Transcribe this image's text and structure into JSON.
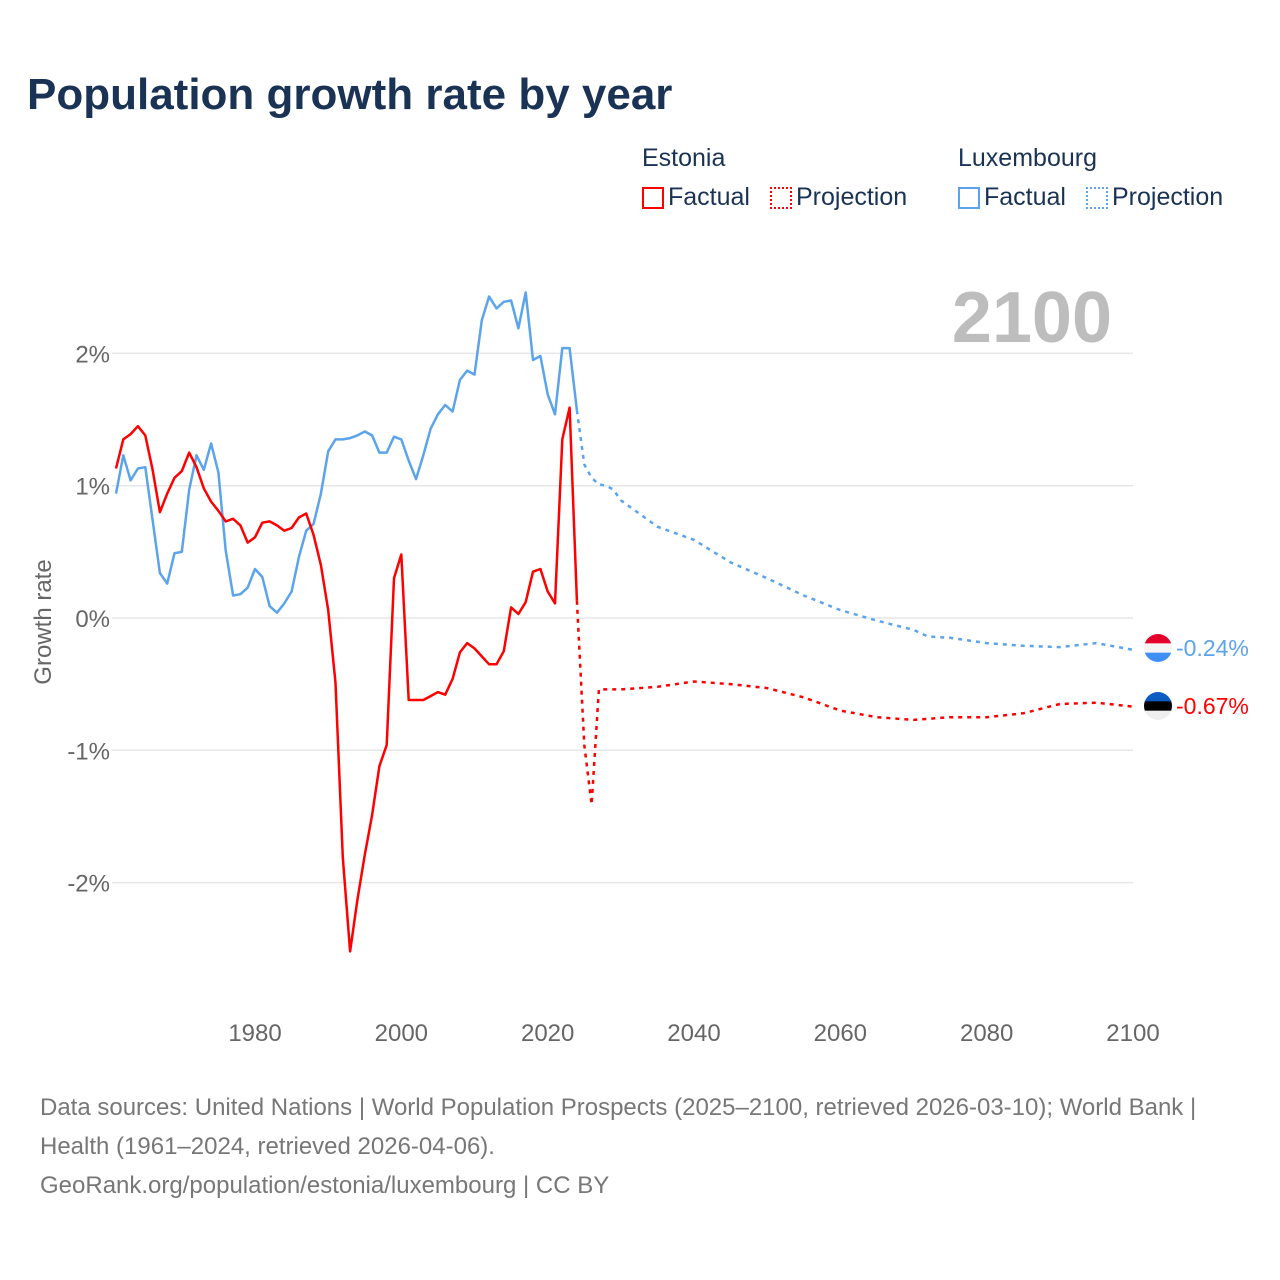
{
  "title": "Population growth rate by year",
  "legend": [
    {
      "country": "Estonia",
      "factual": "Factual",
      "projection": "Projection",
      "color": "#ff0000"
    },
    {
      "country": "Luxembourg",
      "factual": "Factual",
      "projection": "Projection",
      "color": "#5ba4ec"
    }
  ],
  "year_label": "2100",
  "footer": {
    "sources": "Data sources: United Nations | World Population Prospects (2025–2100, retrieved 2026-03-10); World Bank | Health (1961–2024, retrieved 2026-04-06).",
    "link": "GeoRank.org/population/estonia/luxembourg | CC BY"
  },
  "chart_data": {
    "type": "line",
    "title": "Population growth rate by year",
    "xlabel": "",
    "ylabel": "Growth rate",
    "xlim": [
      1961,
      2100
    ],
    "ylim": [
      -2.8,
      2.6
    ],
    "x_ticks": [
      1980,
      2000,
      2020,
      2040,
      2060,
      2080,
      2100
    ],
    "x_tick_labels": [
      "1980",
      "2000",
      "2020",
      "2040",
      "2060",
      "2080",
      "2100"
    ],
    "y_ticks": [
      2,
      1,
      0,
      -1,
      -2
    ],
    "y_tick_labels": [
      "2%",
      "1%",
      "0%",
      "-1%",
      "-2%"
    ],
    "grid": true,
    "series": [
      {
        "name": "Estonia",
        "color": "#ff0000",
        "end_label": "-0.67%",
        "factual": {
          "x": [
            1961,
            1962,
            1963,
            1964,
            1965,
            1966,
            1967,
            1968,
            1969,
            1970,
            1971,
            1972,
            1973,
            1974,
            1975,
            1976,
            1977,
            1978,
            1979,
            1980,
            1981,
            1982,
            1983,
            1984,
            1985,
            1986,
            1987,
            1988,
            1989,
            1990,
            1991,
            1992,
            1993,
            1994,
            1995,
            1996,
            1997,
            1998,
            1999,
            2000,
            2001,
            2002,
            2003,
            2004,
            2005,
            2006,
            2007,
            2008,
            2009,
            2010,
            2011,
            2012,
            2013,
            2014,
            2015,
            2016,
            2017,
            2018,
            2019,
            2020,
            2021,
            2022,
            2023,
            2024
          ],
          "y": [
            1.13,
            1.35,
            1.39,
            1.45,
            1.38,
            1.12,
            0.8,
            0.94,
            1.06,
            1.11,
            1.25,
            1.14,
            0.98,
            0.88,
            0.81,
            0.73,
            0.75,
            0.7,
            0.57,
            0.61,
            0.72,
            0.73,
            0.7,
            0.66,
            0.68,
            0.76,
            0.79,
            0.63,
            0.4,
            0.06,
            -0.49,
            -1.81,
            -2.52,
            -2.13,
            -1.79,
            -1.49,
            -1.12,
            -0.96,
            0.3,
            0.48,
            -0.62,
            -0.62,
            -0.62,
            -0.59,
            -0.56,
            -0.58,
            -0.46,
            -0.26,
            -0.19,
            -0.23,
            -0.29,
            -0.35,
            -0.35,
            -0.25,
            0.08,
            0.03,
            0.12,
            0.35,
            0.37,
            0.2,
            0.11,
            1.35,
            1.59,
            0.13
          ]
        },
        "projection": {
          "x": [
            2024,
            2025,
            2026,
            2027,
            2030,
            2035,
            2040,
            2045,
            2050,
            2055,
            2060,
            2065,
            2070,
            2075,
            2080,
            2085,
            2090,
            2095,
            2100
          ],
          "y": [
            0.13,
            -0.96,
            -1.41,
            -0.54,
            -0.54,
            -0.52,
            -0.48,
            -0.5,
            -0.53,
            -0.6,
            -0.7,
            -0.75,
            -0.77,
            -0.75,
            -0.75,
            -0.72,
            -0.65,
            -0.64,
            -0.67
          ]
        }
      },
      {
        "name": "Luxembourg",
        "color": "#5ba4ec",
        "end_label": "-0.24%",
        "factual": {
          "x": [
            1961,
            1962,
            1963,
            1964,
            1965,
            1966,
            1967,
            1968,
            1969,
            1970,
            1971,
            1972,
            1973,
            1974,
            1975,
            1976,
            1977,
            1978,
            1979,
            1980,
            1981,
            1982,
            1983,
            1984,
            1985,
            1986,
            1987,
            1988,
            1989,
            1990,
            1991,
            1992,
            1993,
            1994,
            1995,
            1996,
            1997,
            1998,
            1999,
            2000,
            2001,
            2002,
            2003,
            2004,
            2005,
            2006,
            2007,
            2008,
            2009,
            2010,
            2011,
            2012,
            2013,
            2014,
            2015,
            2016,
            2017,
            2018,
            2019,
            2020,
            2021,
            2022,
            2023,
            2024
          ],
          "y": [
            0.94,
            1.23,
            1.04,
            1.13,
            1.14,
            0.74,
            0.34,
            0.26,
            0.49,
            0.5,
            0.97,
            1.23,
            1.12,
            1.32,
            1.1,
            0.51,
            0.17,
            0.18,
            0.23,
            0.37,
            0.31,
            0.09,
            0.04,
            0.11,
            0.2,
            0.46,
            0.66,
            0.71,
            0.94,
            1.26,
            1.35,
            1.35,
            1.36,
            1.38,
            1.41,
            1.38,
            1.25,
            1.25,
            1.37,
            1.35,
            1.19,
            1.05,
            1.23,
            1.43,
            1.54,
            1.61,
            1.56,
            1.8,
            1.87,
            1.84,
            2.25,
            2.43,
            2.34,
            2.39,
            2.4,
            2.19,
            2.46,
            1.95,
            1.98,
            1.69,
            1.54,
            2.04,
            2.04,
            1.57
          ]
        },
        "projection": {
          "x": [
            2024,
            2025,
            2026,
            2027,
            2028,
            2029,
            2030,
            2035,
            2040,
            2045,
            2050,
            2055,
            2060,
            2065,
            2070,
            2072,
            2075,
            2080,
            2085,
            2090,
            2095,
            2100
          ],
          "y": [
            1.57,
            1.16,
            1.06,
            1.01,
            1.0,
            0.97,
            0.89,
            0.69,
            0.59,
            0.42,
            0.3,
            0.17,
            0.06,
            -0.02,
            -0.09,
            -0.14,
            -0.15,
            -0.19,
            -0.21,
            -0.22,
            -0.19,
            -0.24
          ]
        }
      }
    ]
  }
}
